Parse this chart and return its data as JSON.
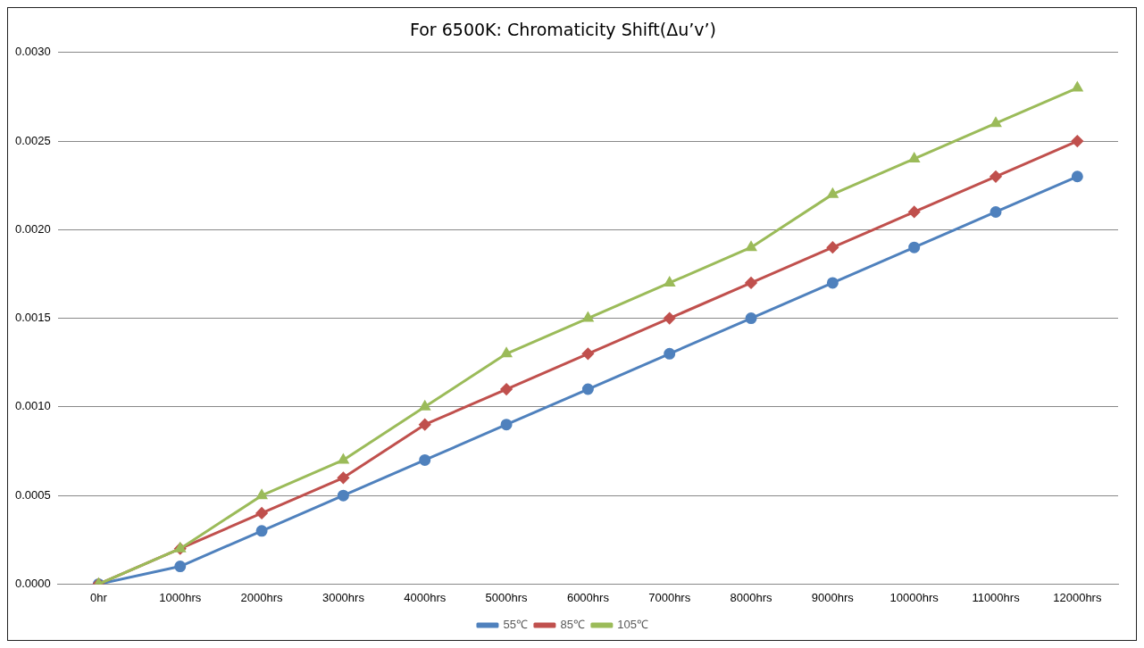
{
  "chart_data": {
    "type": "line",
    "title": "For 6500K: Chromaticity Shift(Δu’v’)",
    "categories": [
      "0hr",
      "1000hrs",
      "2000hrs",
      "3000hrs",
      "4000hrs",
      "5000hrs",
      "6000hrs",
      "7000hrs",
      "8000hrs",
      "9000hrs",
      "10000hrs",
      "11000hrs",
      "12000hrs"
    ],
    "series": [
      {
        "name": "55℃",
        "color": "#4f81bd",
        "marker": "circle",
        "values": [
          0,
          0.0001,
          0.0003,
          0.0005,
          0.0007,
          0.0009,
          0.0011,
          0.0013,
          0.0015,
          0.0017,
          0.0019,
          0.0021,
          0.0023
        ]
      },
      {
        "name": "85℃",
        "color": "#c0504d",
        "marker": "diamond",
        "values": [
          0,
          0.0002,
          0.0004,
          0.0006,
          0.0009,
          0.0011,
          0.0013,
          0.0015,
          0.0017,
          0.0019,
          0.0021,
          0.0023,
          0.0025
        ]
      },
      {
        "name": "105℃",
        "color": "#9bbb59",
        "marker": "triangle",
        "values": [
          0,
          0.0002,
          0.0005,
          0.0007,
          0.001,
          0.0013,
          0.0015,
          0.0017,
          0.0019,
          0.0022,
          0.0024,
          0.0026,
          0.0028
        ]
      }
    ],
    "ylim": [
      0,
      0.003
    ],
    "yticks": [
      {
        "value": 0,
        "label": "0.0000"
      },
      {
        "value": 0.0005,
        "label": "0.0005"
      },
      {
        "value": 0.001,
        "label": "0.0010"
      },
      {
        "value": 0.0015,
        "label": "0.0015"
      },
      {
        "value": 0.002,
        "label": "0.0020"
      },
      {
        "value": 0.0025,
        "label": "0.0025"
      },
      {
        "value": 0.003,
        "label": "0.0030"
      }
    ],
    "grid": "y",
    "legend": "bottom",
    "line_style": "solid"
  }
}
